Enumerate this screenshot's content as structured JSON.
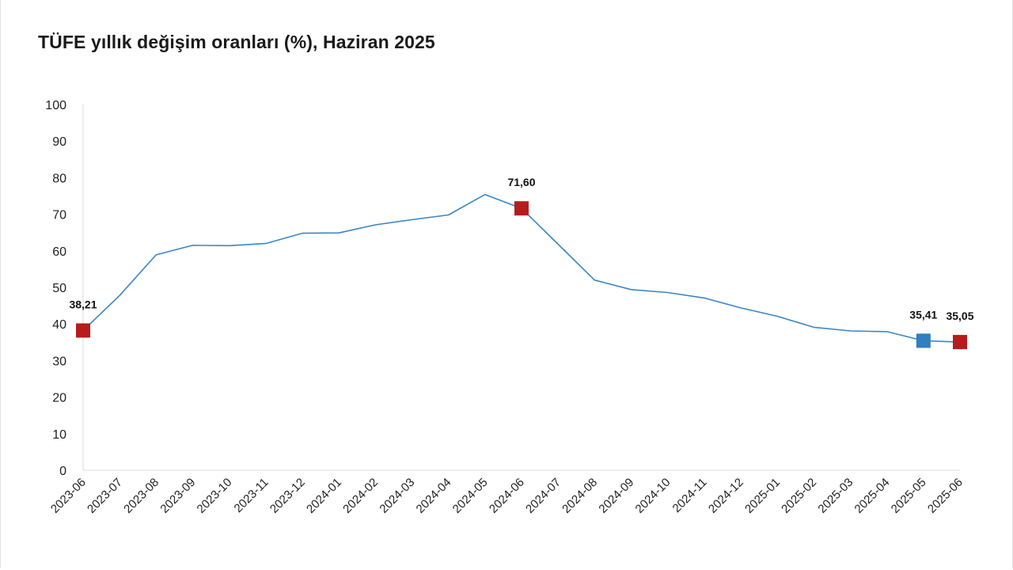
{
  "chart_data": {
    "type": "line",
    "title": "TÜFE yıllık değişim oranları (%), Haziran 2025",
    "xlabel": "",
    "ylabel": "",
    "ylim": [
      0,
      100
    ],
    "yticks": [
      "0",
      "10",
      "20",
      "30",
      "40",
      "50",
      "60",
      "70",
      "80",
      "90",
      "100"
    ],
    "grid": false,
    "categories": [
      "2023-06",
      "2023-07",
      "2023-08",
      "2023-09",
      "2023-10",
      "2023-11",
      "2023-12",
      "2024-01",
      "2024-02",
      "2024-03",
      "2024-04",
      "2024-05",
      "2024-06",
      "2024-07",
      "2024-08",
      "2024-09",
      "2024-10",
      "2024-11",
      "2024-12",
      "2025-01",
      "2025-02",
      "2025-03",
      "2025-04",
      "2025-05",
      "2025-06"
    ],
    "series": [
      {
        "color": "#3b86c4",
        "values": [
          38.21,
          47.8,
          58.9,
          61.5,
          61.4,
          62.0,
          64.8,
          64.9,
          67.1,
          68.5,
          69.8,
          75.4,
          71.6,
          61.8,
          52.0,
          49.4,
          48.6,
          47.1,
          44.4,
          42.1,
          39.1,
          38.1,
          37.9,
          35.41,
          35.05
        ]
      }
    ],
    "markers": [
      {
        "index": 0,
        "label": "38,21",
        "color": "#b71c1c"
      },
      {
        "index": 12,
        "label": "71,60",
        "color": "#b71c1c"
      },
      {
        "index": 23,
        "label": "35,41",
        "color": "#2f7fc1"
      },
      {
        "index": 24,
        "label": "35,05",
        "color": "#b71c1c"
      }
    ]
  }
}
